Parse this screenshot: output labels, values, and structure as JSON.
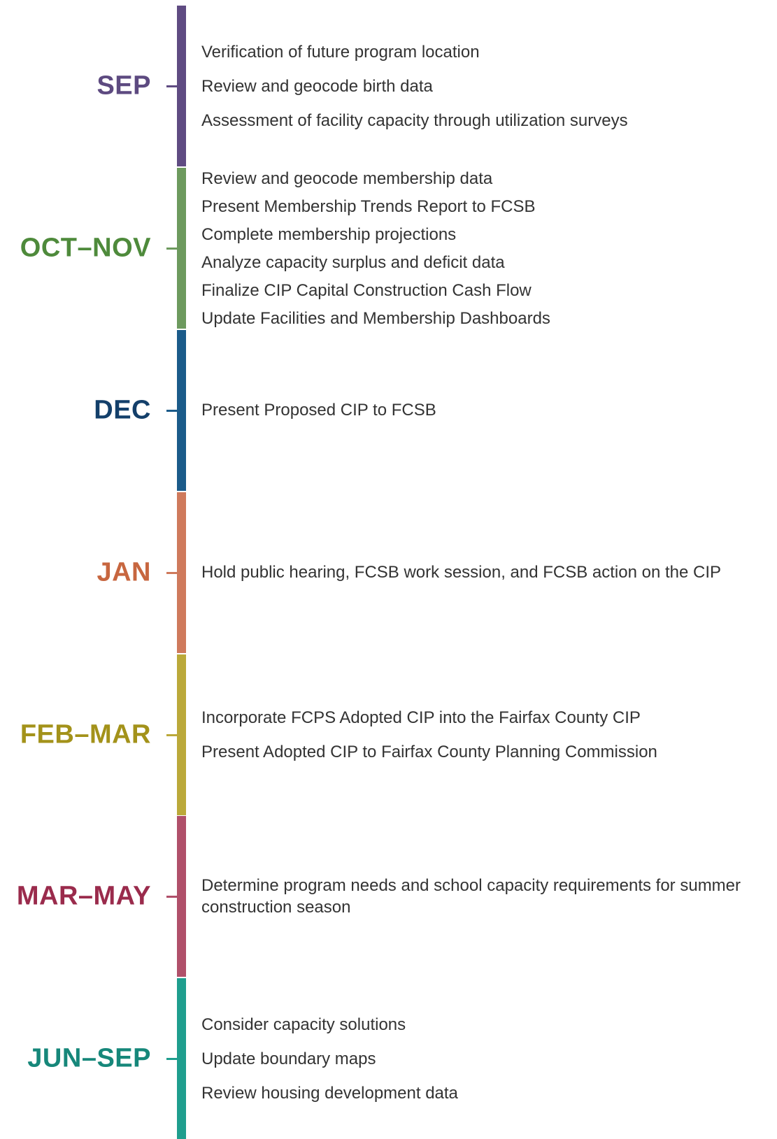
{
  "periods": [
    {
      "label": "SEP",
      "color": "#5d4a80",
      "bar_color": "#5f4b82",
      "items": [
        "Verification of future program location",
        "Review and geocode birth data",
        "Assessment of facility capacity through utilization surveys"
      ]
    },
    {
      "label": "OCT–NOV",
      "color": "#4e8a3b",
      "bar_color": "#6d9a5e",
      "items": [
        "Review and geocode membership data",
        "Present Membership Trends Report to FCSB",
        "Complete membership projections",
        "Analyze capacity surplus and deficit data",
        "Finalize CIP Capital Construction Cash Flow",
        "Update Facilities and Membership Dashboards"
      ]
    },
    {
      "label": "DEC",
      "color": "#133f6a",
      "bar_color": "#1b5b8a",
      "items": [
        "Present Proposed CIP to FCSB"
      ]
    },
    {
      "label": "JAN",
      "color": "#c7663f",
      "bar_color": "#cf7a5c",
      "items": [
        "Hold public hearing, FCSB work session, and FCSB action on the CIP"
      ]
    },
    {
      "label": "FEB–MAR",
      "color": "#a3921a",
      "bar_color": "#bba93a",
      "items": [
        "Incorporate FCPS Adopted CIP into the Fairfax County CIP",
        "Present Adopted CIP to Fairfax County Planning Commission"
      ]
    },
    {
      "label": "MAR–MAY",
      "color": "#9a2b4c",
      "bar_color": "#b0506a",
      "items": [
        "Determine program needs and school capacity requirements for summer construction season"
      ]
    },
    {
      "label": "JUN–SEP",
      "color": "#16877a",
      "bar_color": "#1f9e8e",
      "items": [
        "Consider capacity solutions",
        "Update boundary maps",
        "Review housing development data"
      ]
    }
  ]
}
